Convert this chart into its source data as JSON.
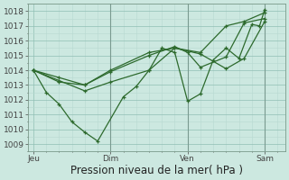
{
  "xlabel": "Pression niveau de la mer( hPa )",
  "bg_color": "#cce8e0",
  "line_color": "#2d6a2d",
  "grid_color": "#a8cfc4",
  "vline_color": "#7a9a90",
  "ylim": [
    1008.5,
    1018.5
  ],
  "xlim": [
    -0.2,
    9.8
  ],
  "xtick_labels": [
    "Jeu",
    "Dim",
    "Ven",
    "Sam"
  ],
  "xtick_positions": [
    0.0,
    3.0,
    6.0,
    9.0
  ],
  "ytick_values": [
    1009,
    1010,
    1011,
    1012,
    1013,
    1014,
    1015,
    1016,
    1017,
    1018
  ],
  "lines": [
    [
      1014.0,
      1013.3,
      1012.6,
      1013.2,
      1014.0,
      1015.5,
      1015.2,
      1017.0,
      1017.3,
      1017.9
    ],
    [
      1014.0,
      1012.5,
      1011.7,
      1010.5,
      1009.8,
      1009.2,
      1012.2,
      1012.9,
      1014.0,
      1015.5,
      1015.2,
      1011.9,
      1012.4,
      1014.7,
      1015.5,
      1014.8,
      1017.1,
      1017.0,
      1018.1
    ],
    [
      1014.0,
      1013.5,
      1013.0,
      1013.9,
      1015.0,
      1015.6,
      1015.2,
      1014.2,
      1014.9,
      1017.2,
      1017.5
    ],
    [
      1014.0,
      1013.2,
      1013.0,
      1014.0,
      1015.2,
      1015.5,
      1015.1,
      1014.1,
      1014.8,
      1017.3
    ]
  ],
  "line_x": [
    [
      0,
      1,
      2,
      3,
      4.5,
      5.5,
      6.5,
      7.5,
      8.2,
      9.0
    ],
    [
      0,
      0.5,
      1.0,
      1.5,
      2.0,
      2.5,
      3.5,
      4.0,
      4.5,
      5.0,
      5.5,
      6.0,
      6.5,
      7.0,
      7.5,
      8.0,
      8.5,
      8.8,
      9.0
    ],
    [
      0,
      1,
      2,
      3,
      4.5,
      5.5,
      6.0,
      6.5,
      7.5,
      8.2,
      9.0
    ],
    [
      0,
      1,
      2,
      3,
      4.5,
      5.5,
      6.5,
      7.5,
      8.2,
      9.0
    ]
  ],
  "vline_positions": [
    3.0,
    6.0,
    9.0
  ],
  "xlabel_fontsize": 8.5,
  "tick_fontsize": 6.5,
  "linewidth": 0.9,
  "markersize": 3.5,
  "grid_minor_color": "#b8d8d0",
  "grid_major_color": "#90bfb4"
}
